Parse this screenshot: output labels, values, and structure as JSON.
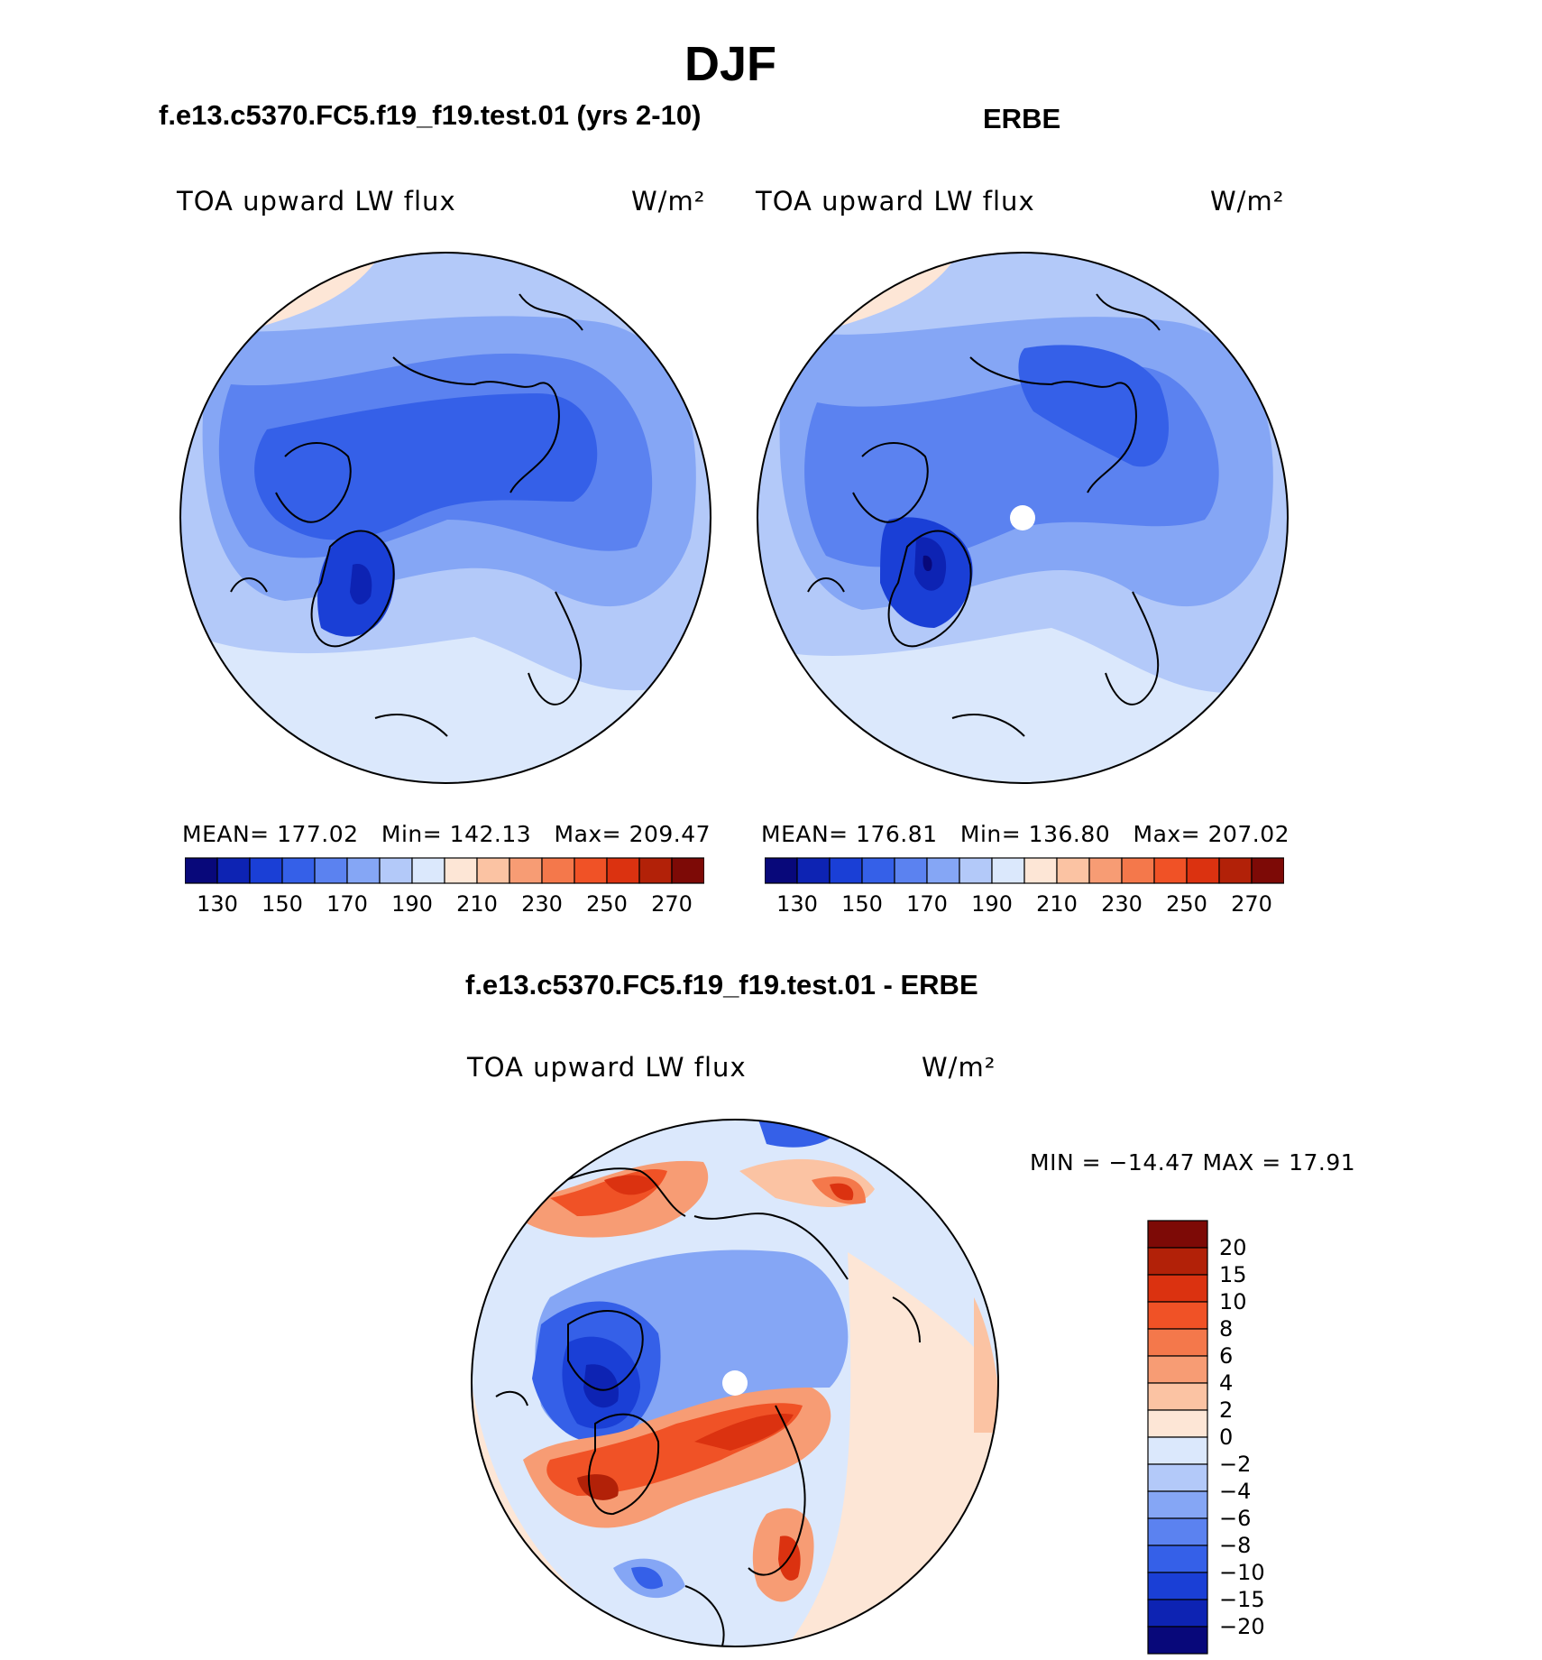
{
  "figure_title": "DJF",
  "panels": [
    {
      "title": "f.e13.c5370.FC5.f19_f19.test.01 (yrs 2-10)",
      "left_label": "TOA upward LW flux",
      "units": "W/m²",
      "mean_label": "MEAN=",
      "mean": "177.02",
      "min_label": "Min=",
      "min": "142.13",
      "max_label": "Max=",
      "max": "209.47"
    },
    {
      "title": "ERBE",
      "left_label": "TOA upward LW flux",
      "units": "W/m²",
      "mean_label": "MEAN=",
      "mean": "176.81",
      "min_label": "Min=",
      "min": "136.80",
      "max_label": "Max=",
      "max": "207.02"
    }
  ],
  "diff_panel": {
    "title": "f.e13.c5370.FC5.f19_f19.test.01 - ERBE",
    "left_label": "TOA upward LW flux",
    "units": "W/m²",
    "minmax_text": "MIN = −14.47 MAX =   17.91"
  },
  "colors": {
    "abs_scale": [
      "#08087a",
      "#0d23b3",
      "#1a3fd6",
      "#3560e8",
      "#5b82f0",
      "#85a6f5",
      "#b3c9f9",
      "#dbe8fc",
      "#fde6d6",
      "#fbc3a3",
      "#f79c74",
      "#f4784b",
      "#f05226",
      "#db3210",
      "#b22108",
      "#7d0a06"
    ],
    "diff_scale": [
      "#08087a",
      "#0d23b3",
      "#1a3fd6",
      "#3560e8",
      "#5b82f0",
      "#85a6f5",
      "#b3c9f9",
      "#dbe8fc",
      "#fde6d6",
      "#fbc3a3",
      "#f79c74",
      "#f4784b",
      "#f05226",
      "#db3210",
      "#b22108",
      "#7d0a06"
    ]
  },
  "chart_data": [
    {
      "type": "heatmap",
      "projection": "north-polar stereographic",
      "title": "f.e13.c5370.FC5.f19_f19.test.01 (yrs 2-10)",
      "variable": "TOA upward LW flux",
      "units": "W/m2",
      "mean": 177.02,
      "min": 142.13,
      "max": 209.47,
      "colorbar_ticks": [
        "130",
        "150",
        "170",
        "190",
        "210",
        "230",
        "250",
        "270"
      ]
    },
    {
      "type": "heatmap",
      "projection": "north-polar stereographic",
      "title": "ERBE",
      "variable": "TOA upward LW flux",
      "units": "W/m2",
      "mean": 176.81,
      "min": 136.8,
      "max": 207.02,
      "colorbar_ticks": [
        "130",
        "150",
        "170",
        "190",
        "210",
        "230",
        "250",
        "270"
      ]
    },
    {
      "type": "heatmap",
      "projection": "north-polar stereographic",
      "title": "f.e13.c5370.FC5.f19_f19.test.01 - ERBE",
      "variable": "TOA upward LW flux",
      "units": "W/m2",
      "min": -14.47,
      "max": 17.91,
      "colorbar_ticks": [
        "20",
        "15",
        "10",
        "8",
        "6",
        "4",
        "2",
        "0",
        "−2",
        "−4",
        "−6",
        "−8",
        "−10",
        "−15",
        "−20"
      ]
    }
  ]
}
